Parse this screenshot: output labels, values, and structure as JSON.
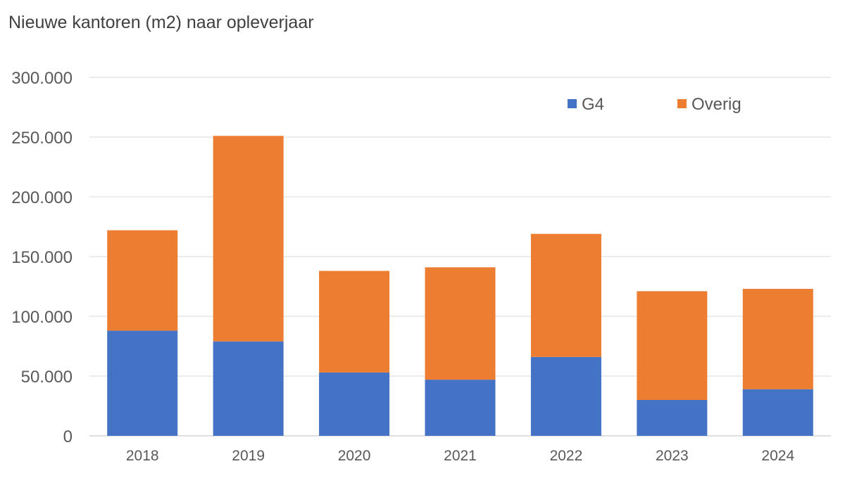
{
  "chart_data": {
    "type": "bar",
    "stacked": true,
    "title": "Nieuwe kantoren (m2) naar opleverjaar",
    "categories": [
      "2018",
      "2019",
      "2020",
      "2021",
      "2022",
      "2023",
      "2024"
    ],
    "series": [
      {
        "name": "G4",
        "values": [
          88000,
          79000,
          53000,
          47000,
          66000,
          30000,
          39000
        ],
        "color": "#4472C4"
      },
      {
        "name": "Overig",
        "values": [
          84000,
          172000,
          85000,
          94000,
          103000,
          91000,
          84000
        ],
        "color": "#ED7D31"
      }
    ],
    "ylim": [
      0,
      300000
    ],
    "yticks": [
      "0",
      "50.000",
      "100.000",
      "150.000",
      "200.000",
      "250.000",
      "300.000"
    ],
    "grid": true,
    "legend_position": "top-right"
  }
}
